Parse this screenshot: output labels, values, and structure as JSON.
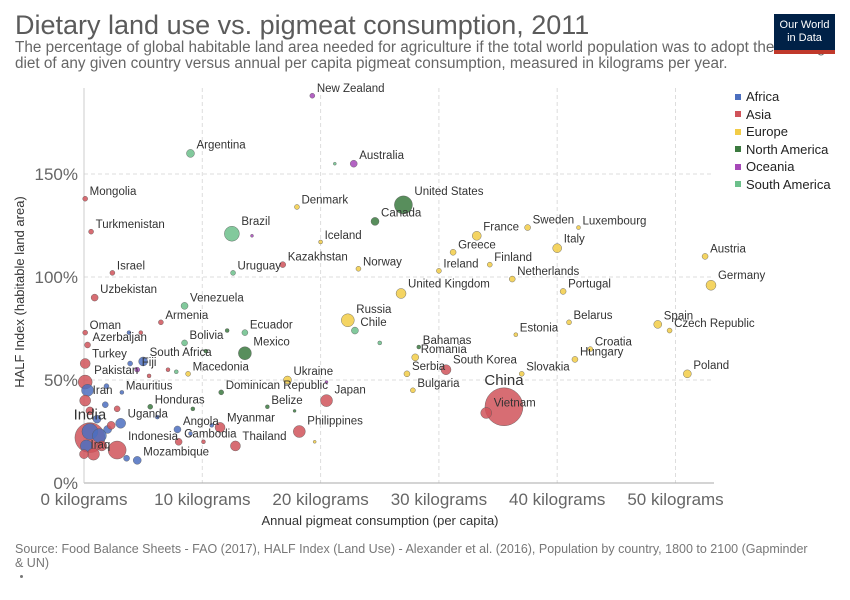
{
  "header": {
    "title": "Dietary land use vs. pigmeat consumption, 2011",
    "subtitle": "The percentage of global habitable land area needed for agriculture if the total world population was to adopt the average diet of any given country versus annual per capita pigmeat consumption, measured in kilograms per year.",
    "logo_line1": "Our World",
    "logo_line2": "in Data"
  },
  "footer": {
    "source_line1": "Source: Food Balance Sheets - FAO (2017), HALF Index (Land Use) - Alexander et al. (2016), Population by country, 1800 to 2100 (Gapminder",
    "source_line2": "& UN)"
  },
  "legend": {
    "items": [
      {
        "label": "Africa",
        "color": "#4C6FBF"
      },
      {
        "label": "Asia",
        "color": "#D0535A"
      },
      {
        "label": "Europe",
        "color": "#F2CC46"
      },
      {
        "label": "North America",
        "color": "#3B7A3F"
      },
      {
        "label": "Oceania",
        "color": "#A648B8"
      },
      {
        "label": "South America",
        "color": "#6CC08B"
      }
    ]
  },
  "chart_data": {
    "type": "scatter",
    "title": "Dietary land use vs. pigmeat consumption, 2011",
    "xlabel": "Annual pigmeat consumption (per capita)",
    "ylabel": "HALF Index (habitable land area)",
    "x_ticks": [
      "0 kilograms",
      "10 kilograms",
      "20 kilograms",
      "30 kilograms",
      "40 kilograms",
      "50 kilograms"
    ],
    "y_ticks": [
      "0%",
      "50%",
      "100%",
      "150%"
    ],
    "xlim": [
      0,
      53
    ],
    "ylim": [
      0,
      188
    ],
    "grid": true,
    "legend_position": "right",
    "size_encodes": "population",
    "points": [
      {
        "label": "New Zealand",
        "x": 19.3,
        "y": 188,
        "continent": "Oceania",
        "r": 2.5
      },
      {
        "label": "Argentina",
        "x": 9.0,
        "y": 160,
        "continent": "South America",
        "r": 4
      },
      {
        "label": "Australia",
        "x": 22.8,
        "y": 155,
        "continent": "Oceania",
        "r": 3.5
      },
      {
        "label": "Mongolia",
        "x": 0.1,
        "y": 138,
        "continent": "Asia",
        "r": 2.5
      },
      {
        "label": "Denmark",
        "x": 18.0,
        "y": 134,
        "continent": "Europe",
        "r": 2.5
      },
      {
        "label": "United States",
        "x": 27.0,
        "y": 135,
        "continent": "North America",
        "r": 9
      },
      {
        "label": "Canada",
        "x": 24.6,
        "y": 127,
        "continent": "North America",
        "r": 4
      },
      {
        "label": "Turkmenistan",
        "x": 0.6,
        "y": 122,
        "continent": "Asia",
        "r": 2.5
      },
      {
        "label": "Brazil",
        "x": 12.5,
        "y": 121,
        "continent": "South America",
        "r": 7.5
      },
      {
        "label": "Iceland",
        "x": 20.0,
        "y": 117,
        "continent": "Europe",
        "r": 2
      },
      {
        "label": "France",
        "x": 33.2,
        "y": 120,
        "continent": "Europe",
        "r": 4.5
      },
      {
        "label": "Sweden",
        "x": 37.5,
        "y": 124,
        "continent": "Europe",
        "r": 3
      },
      {
        "label": "Luxembourg",
        "x": 41.8,
        "y": 124,
        "continent": "Europe",
        "r": 2
      },
      {
        "label": "Italy",
        "x": 40.0,
        "y": 114,
        "continent": "Europe",
        "r": 4.5
      },
      {
        "label": "Greece",
        "x": 31.2,
        "y": 112,
        "continent": "Europe",
        "r": 3
      },
      {
        "label": "Austria",
        "x": 52.5,
        "y": 110,
        "continent": "Europe",
        "r": 3
      },
      {
        "label": "Kazakhstan",
        "x": 16.8,
        "y": 106,
        "continent": "Asia",
        "r": 3
      },
      {
        "label": "Norway",
        "x": 23.2,
        "y": 104,
        "continent": "Europe",
        "r": 2.5
      },
      {
        "label": "Ireland",
        "x": 30.0,
        "y": 103,
        "continent": "Europe",
        "r": 2.5
      },
      {
        "label": "Finland",
        "x": 34.3,
        "y": 106,
        "continent": "Europe",
        "r": 2.5
      },
      {
        "label": "Israel",
        "x": 2.4,
        "y": 102,
        "continent": "Asia",
        "r": 2.5
      },
      {
        "label": "Uruguay",
        "x": 12.6,
        "y": 102,
        "continent": "South America",
        "r": 2.5
      },
      {
        "label": "Netherlands",
        "x": 36.2,
        "y": 99,
        "continent": "Europe",
        "r": 3
      },
      {
        "label": "Germany",
        "x": 53.0,
        "y": 96,
        "continent": "Europe",
        "r": 5
      },
      {
        "label": "Portugal",
        "x": 40.5,
        "y": 93,
        "continent": "Europe",
        "r": 3
      },
      {
        "label": "United Kingdom",
        "x": 26.8,
        "y": 92,
        "continent": "Europe",
        "r": 5
      },
      {
        "label": "Uzbekistan",
        "x": 0.9,
        "y": 90,
        "continent": "Asia",
        "r": 3.5
      },
      {
        "label": "Venezuela",
        "x": 8.5,
        "y": 86,
        "continent": "South America",
        "r": 3.5
      },
      {
        "label": "Russia",
        "x": 22.3,
        "y": 79,
        "continent": "Europe",
        "r": 6.5
      },
      {
        "label": "Belarus",
        "x": 41.0,
        "y": 78,
        "continent": "Europe",
        "r": 2.5
      },
      {
        "label": "Spain",
        "x": 48.5,
        "y": 77,
        "continent": "Europe",
        "r": 4
      },
      {
        "label": "Czech Republic",
        "x": 49.5,
        "y": 74,
        "continent": "Europe",
        "r": 2.5
      },
      {
        "label": "Armenia",
        "x": 6.5,
        "y": 78,
        "continent": "Asia",
        "r": 2.5
      },
      {
        "label": "Chile",
        "x": 22.9,
        "y": 74,
        "continent": "South America",
        "r": 3.5
      },
      {
        "label": "Ecuador",
        "x": 13.6,
        "y": 73,
        "continent": "South America",
        "r": 3
      },
      {
        "label": "Estonia",
        "x": 36.5,
        "y": 72,
        "continent": "Europe",
        "r": 2
      },
      {
        "label": "Oman",
        "x": 0.1,
        "y": 73,
        "continent": "Asia",
        "r": 2.5
      },
      {
        "label": "Bolivia",
        "x": 8.5,
        "y": 68,
        "continent": "South America",
        "r": 3
      },
      {
        "label": "Croatia",
        "x": 42.8,
        "y": 65,
        "continent": "Europe",
        "r": 2.5
      },
      {
        "label": "Azerbaijan",
        "x": 0.3,
        "y": 67,
        "continent": "Asia",
        "r": 3
      },
      {
        "label": "Bahamas",
        "x": 28.3,
        "y": 66,
        "continent": "North America",
        "r": 2
      },
      {
        "label": "Mexico",
        "x": 13.6,
        "y": 63,
        "continent": "North America",
        "r": 6.5
      },
      {
        "label": "Romania",
        "x": 28.0,
        "y": 61,
        "continent": "Europe",
        "r": 3.5
      },
      {
        "label": "Hungary",
        "x": 41.5,
        "y": 60,
        "continent": "Europe",
        "r": 3
      },
      {
        "label": "Turkey",
        "x": 0.1,
        "y": 58,
        "continent": "Asia",
        "r": 5
      },
      {
        "label": "South Africa",
        "x": 5.0,
        "y": 59,
        "continent": "Africa",
        "r": 4.5
      },
      {
        "label": "Fiji",
        "x": 4.5,
        "y": 55,
        "continent": "Oceania",
        "r": 2.5
      },
      {
        "label": "Macedonia",
        "x": 8.8,
        "y": 53,
        "continent": "Europe",
        "r": 2.5
      },
      {
        "label": "South Korea",
        "x": 30.6,
        "y": 55,
        "continent": "Asia",
        "r": 5
      },
      {
        "label": "Serbia",
        "x": 27.3,
        "y": 53,
        "continent": "Europe",
        "r": 3
      },
      {
        "label": "Slovakia",
        "x": 37.0,
        "y": 53,
        "continent": "Europe",
        "r": 2.5
      },
      {
        "label": "Poland",
        "x": 51.0,
        "y": 53,
        "continent": "Europe",
        "r": 4
      },
      {
        "label": "Pakistan",
        "x": 0.1,
        "y": 49,
        "continent": "Asia",
        "r": 7
      },
      {
        "label": "Ukraine",
        "x": 17.2,
        "y": 50,
        "continent": "Europe",
        "r": 4
      },
      {
        "label": "Mauritius",
        "x": 3.2,
        "y": 44,
        "continent": "Africa",
        "r": 2
      },
      {
        "label": "Dominican Republic",
        "x": 11.6,
        "y": 44,
        "continent": "North America",
        "r": 2.5
      },
      {
        "label": "Bulgaria",
        "x": 27.8,
        "y": 45,
        "continent": "Europe",
        "r": 2.5
      },
      {
        "label": "Iran",
        "x": 0.1,
        "y": 40,
        "continent": "Asia",
        "r": 5.5
      },
      {
        "label": "Japan",
        "x": 20.5,
        "y": 40,
        "continent": "Asia",
        "r": 6
      },
      {
        "label": "China",
        "x": 35.5,
        "y": 37,
        "continent": "Asia",
        "r": 19
      },
      {
        "label": "Vietnam",
        "x": 34.0,
        "y": 34,
        "continent": "Asia",
        "r": 5.5
      },
      {
        "label": "Honduras",
        "x": 5.6,
        "y": 37,
        "continent": "North America",
        "r": 2.5
      },
      {
        "label": "Belize",
        "x": 15.5,
        "y": 37,
        "continent": "North America",
        "r": 2
      },
      {
        "label": "Uganda",
        "x": 3.1,
        "y": 29,
        "continent": "Africa",
        "r": 5
      },
      {
        "label": "India",
        "x": 0.5,
        "y": 22,
        "continent": "Asia",
        "r": 15
      },
      {
        "label": "Angola",
        "x": 7.9,
        "y": 26,
        "continent": "Africa",
        "r": 3.5
      },
      {
        "label": "Myanmar",
        "x": 11.5,
        "y": 27,
        "continent": "Asia",
        "r": 5
      },
      {
        "label": "Philippines",
        "x": 18.2,
        "y": 25,
        "continent": "Asia",
        "r": 6
      },
      {
        "label": "Cambodia",
        "x": 8.0,
        "y": 20,
        "continent": "Asia",
        "r": 3.5
      },
      {
        "label": "Indonesia",
        "x": 2.8,
        "y": 16,
        "continent": "Asia",
        "r": 9
      },
      {
        "label": "Iraq",
        "x": 0.0,
        "y": 14,
        "continent": "Asia",
        "r": 4.5
      },
      {
        "label": "Thailand",
        "x": 12.8,
        "y": 18,
        "continent": "Asia",
        "r": 5
      },
      {
        "label": "Mozambique",
        "x": 4.5,
        "y": 11,
        "continent": "Africa",
        "r": 4
      }
    ],
    "unlabeled_points": [
      {
        "x": 0.3,
        "y": 45,
        "continent": "Africa",
        "r": 6
      },
      {
        "x": 0.5,
        "y": 25,
        "continent": "Africa",
        "r": 8
      },
      {
        "x": 1.3,
        "y": 23,
        "continent": "Africa",
        "r": 7
      },
      {
        "x": 0.2,
        "y": 18,
        "continent": "Africa",
        "r": 6
      },
      {
        "x": 1.1,
        "y": 31,
        "continent": "Africa",
        "r": 4
      },
      {
        "x": 1.8,
        "y": 38,
        "continent": "Africa",
        "r": 3
      },
      {
        "x": 2.0,
        "y": 26,
        "continent": "Africa",
        "r": 4
      },
      {
        "x": 0.8,
        "y": 14,
        "continent": "Asia",
        "r": 6
      },
      {
        "x": 1.5,
        "y": 18,
        "continent": "Asia",
        "r": 5
      },
      {
        "x": 2.3,
        "y": 28,
        "continent": "Asia",
        "r": 4
      },
      {
        "x": 0.5,
        "y": 35,
        "continent": "Asia",
        "r": 4
      },
      {
        "x": 3.6,
        "y": 12,
        "continent": "Africa",
        "r": 3
      },
      {
        "x": 2.8,
        "y": 36,
        "continent": "Asia",
        "r": 3
      },
      {
        "x": 1.9,
        "y": 47,
        "continent": "Africa",
        "r": 2.5
      },
      {
        "x": 3.9,
        "y": 58,
        "continent": "Africa",
        "r": 2.5
      },
      {
        "x": 4.8,
        "y": 73,
        "continent": "Asia",
        "r": 2
      },
      {
        "x": 3.8,
        "y": 73,
        "continent": "Africa",
        "r": 2
      },
      {
        "x": 10.3,
        "y": 64,
        "continent": "North America",
        "r": 2
      },
      {
        "x": 12.1,
        "y": 74,
        "continent": "North America",
        "r": 2
      },
      {
        "x": 7.8,
        "y": 54,
        "continent": "South America",
        "r": 2
      },
      {
        "x": 9.2,
        "y": 36,
        "continent": "North America",
        "r": 2
      },
      {
        "x": 7.1,
        "y": 55,
        "continent": "Asia",
        "r": 2
      },
      {
        "x": 5.5,
        "y": 52,
        "continent": "Asia",
        "r": 2
      },
      {
        "x": 9.0,
        "y": 24,
        "continent": "Africa",
        "r": 2
      },
      {
        "x": 10.8,
        "y": 28,
        "continent": "Africa",
        "r": 2
      },
      {
        "x": 6.2,
        "y": 32,
        "continent": "Africa",
        "r": 2
      },
      {
        "x": 10.1,
        "y": 20,
        "continent": "Asia",
        "r": 2
      },
      {
        "x": 14.2,
        "y": 120,
        "continent": "Oceania",
        "r": 1.5
      },
      {
        "x": 21.2,
        "y": 155,
        "continent": "South America",
        "r": 1.5
      },
      {
        "x": 25.0,
        "y": 68,
        "continent": "South America",
        "r": 2
      },
      {
        "x": 19.5,
        "y": 20,
        "continent": "Europe",
        "r": 1.5
      },
      {
        "x": 20.5,
        "y": 49,
        "continent": "Oceania",
        "r": 1.5
      },
      {
        "x": 17.8,
        "y": 35,
        "continent": "North America",
        "r": 1.5
      }
    ]
  }
}
